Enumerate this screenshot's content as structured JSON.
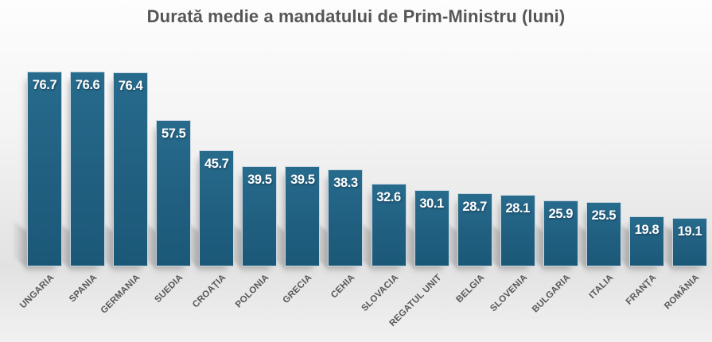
{
  "title": "Durată medie a mandatului de Prim-Ministru (luni)",
  "chart_data": {
    "type": "bar",
    "title": "Durată medie a mandatului de Prim-Ministru (luni)",
    "categories": [
      "UNGARIA",
      "SPANIA",
      "GERMANIA",
      "SUEDIA",
      "CROAȚIA",
      "POLONIA",
      "GRECIA",
      "CEHIA",
      "SLOVACIA",
      "REGATUL UNIT",
      "BELGIA",
      "SLOVENIA",
      "BULGARIA",
      "ITALIA",
      "FRANȚA",
      "ROMÂNIA"
    ],
    "values": [
      76.7,
      76.6,
      76.4,
      57.5,
      45.7,
      39.5,
      39.5,
      38.3,
      32.6,
      30.1,
      28.7,
      28.1,
      25.9,
      25.5,
      19.8,
      19.1
    ],
    "value_labels": [
      "76.7",
      "76.6",
      "76.4",
      "57.5",
      "45.7",
      "39.5",
      "39.5",
      "38.3",
      "32.6",
      "30.1",
      "28.7",
      "28.1",
      "25.9",
      "25.5",
      "19.8",
      "19.1"
    ],
    "xlabel": "",
    "ylabel": "",
    "ylim": [
      0,
      80
    ],
    "grid": false,
    "legend": false,
    "bar_color": "#216081",
    "bar_border_color": "#c9d6de",
    "value_label_color": "#ffffff",
    "category_label_color": "#585858",
    "title_color": "#565656"
  }
}
